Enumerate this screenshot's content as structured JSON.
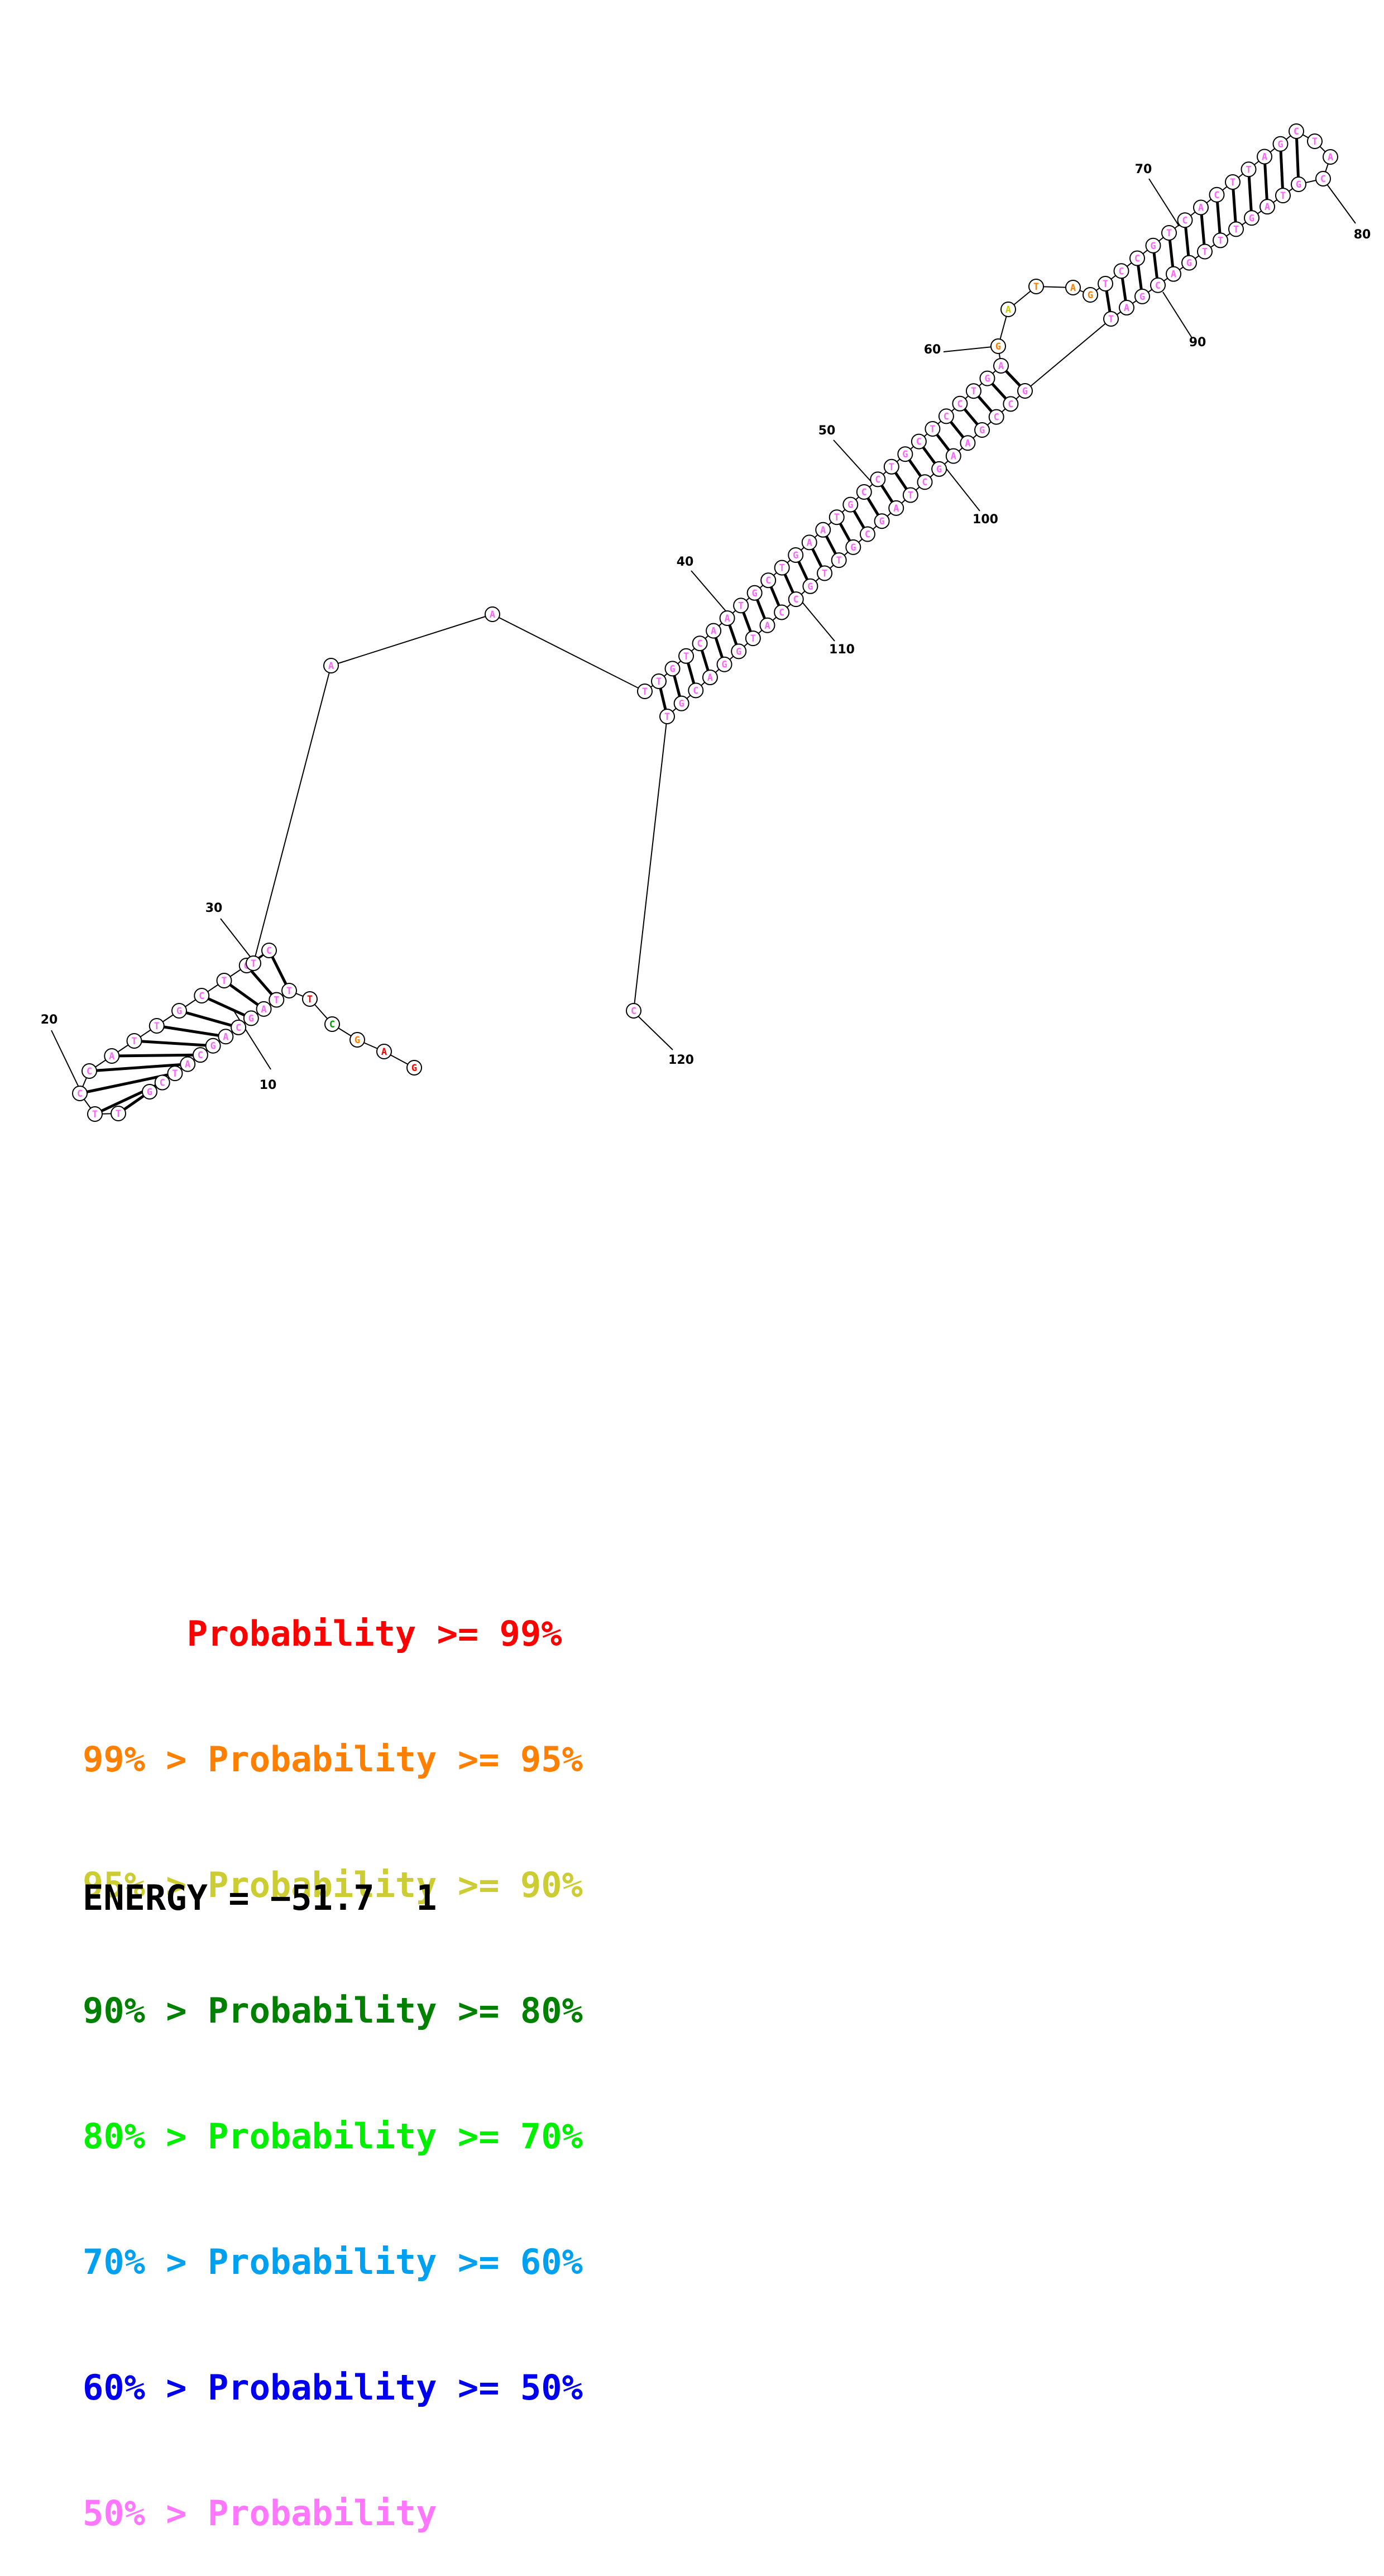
{
  "sequence_length": 121,
  "position_labels": [
    {
      "number": "10",
      "nt": 10
    },
    {
      "number": "20",
      "nt": 20
    },
    {
      "number": "30",
      "nt": 30
    },
    {
      "number": "40",
      "nt": 40
    },
    {
      "number": "50",
      "nt": 50
    },
    {
      "number": "60",
      "nt": 60
    },
    {
      "number": "70",
      "nt": 70
    },
    {
      "number": "80",
      "nt": 80
    },
    {
      "number": "90",
      "nt": 90
    },
    {
      "number": "100",
      "nt": 100
    },
    {
      "number": "110",
      "nt": 110
    },
    {
      "number": "120",
      "nt": 120
    }
  ],
  "colored_nucleotides": [
    {
      "letter": "G",
      "color": "#ff0000"
    },
    {
      "letter": "A",
      "color": "#ff0000"
    },
    {
      "letter": "G",
      "color": "#ff7f00"
    },
    {
      "letter": "C",
      "color": "#00a000"
    },
    {
      "letter": "T",
      "color": "#ff0000"
    },
    {
      "letter": "G",
      "color": "#ff7f00"
    },
    {
      "letter": "A",
      "color": "#ff7f00"
    },
    {
      "letter": "T",
      "color": "#ff7f00"
    },
    {
      "letter": "A",
      "color": "#cccc00"
    },
    {
      "letter": "G",
      "color": "#ff7f00"
    }
  ],
  "legend": [
    {
      "text": "     Probability >= 99%",
      "color": "#ff0000"
    },
    {
      "text": "99% > Probability >= 95%",
      "color": "#ff7f00"
    },
    {
      "text": "95% > Probability >= 90%",
      "color": "#cccc33"
    },
    {
      "text": "90% > Probability >= 80%",
      "color": "#008000"
    },
    {
      "text": "80% > Probability >= 70%",
      "color": "#00ee00"
    },
    {
      "text": "70% > Probability >= 60%",
      "color": "#00a0f0"
    },
    {
      "text": "60% > Probability >= 50%",
      "color": "#0000ee"
    },
    {
      "text": "50% > Probability",
      "color": "#ff77ff"
    }
  ],
  "energy": {
    "label": "ENERGY = −51.7  1"
  },
  "colors": {
    "default_nucleotide": "#ff66ff",
    "backbone": "#000000"
  }
}
